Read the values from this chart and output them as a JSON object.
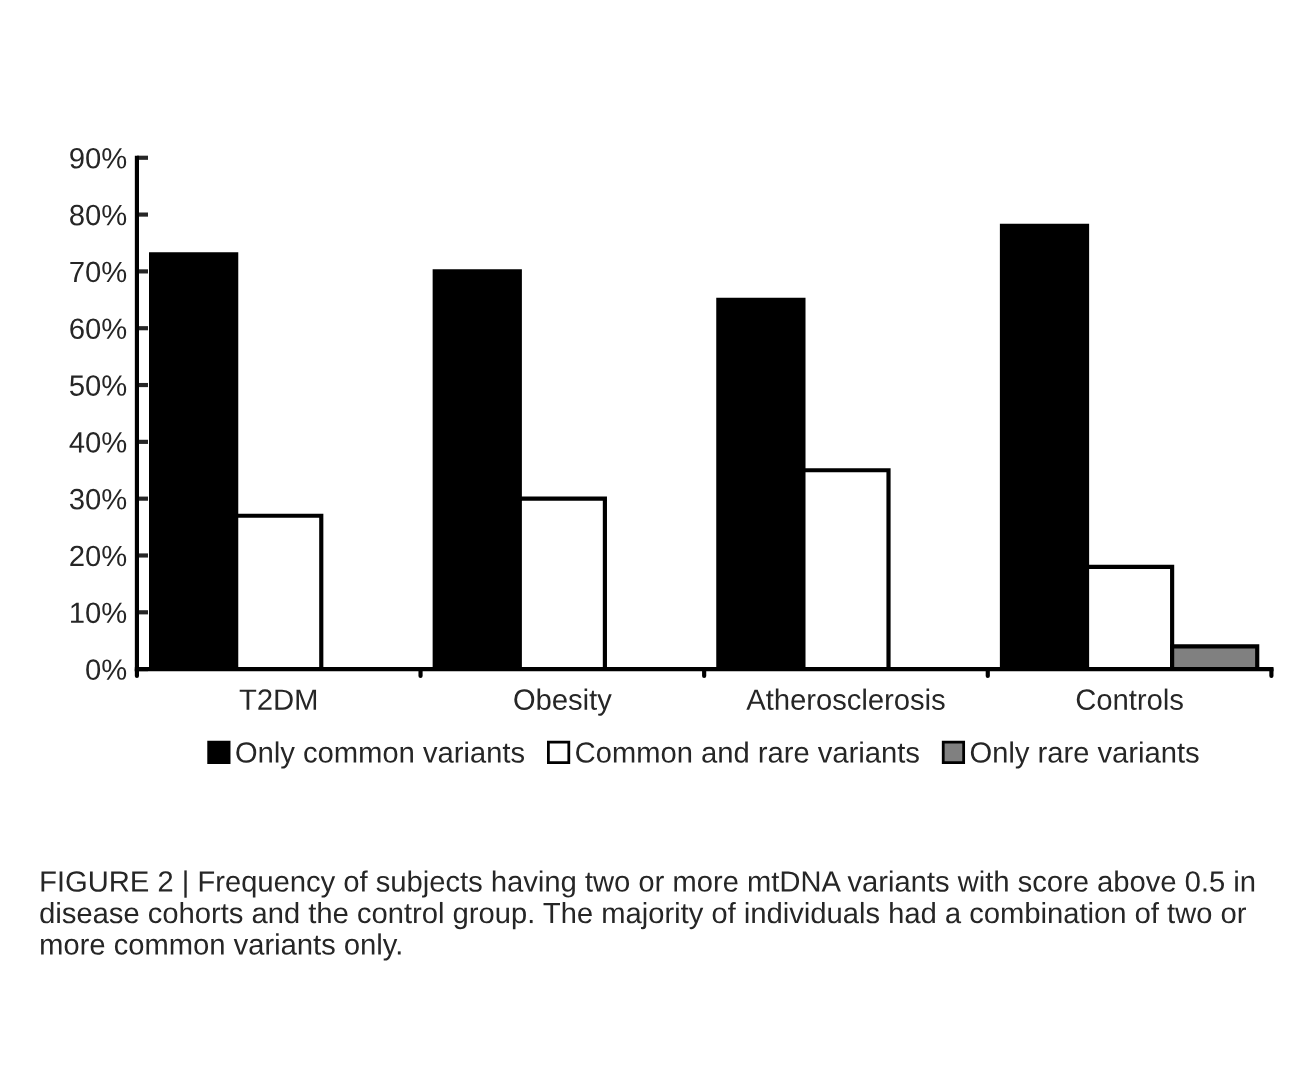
{
  "chart_data": {
    "type": "bar",
    "categories": [
      "T2DM",
      "Obesity",
      "Atherosclerosis",
      "Controls"
    ],
    "series": [
      {
        "name": "Only common variants",
        "color": "#000000",
        "values": [
          73,
          70,
          65,
          78
        ]
      },
      {
        "name": "Common and rare variants",
        "color": "#ffffff",
        "values": [
          27,
          30,
          35,
          18
        ]
      },
      {
        "name": "Only rare variants",
        "color": "#808080",
        "values": [
          null,
          null,
          null,
          4
        ]
      }
    ],
    "ylim": [
      0,
      90
    ],
    "yticks": [
      {
        "value": 0,
        "label": "0%"
      },
      {
        "value": 10,
        "label": "10%"
      },
      {
        "value": 20,
        "label": "20%"
      },
      {
        "value": 30,
        "label": "30%"
      },
      {
        "value": 40,
        "label": "40%"
      },
      {
        "value": 50,
        "label": "50%"
      },
      {
        "value": 60,
        "label": "60%"
      },
      {
        "value": 70,
        "label": "70%"
      },
      {
        "value": 80,
        "label": "80%"
      },
      {
        "value": 90,
        "label": "90%"
      }
    ],
    "grid": false,
    "legend": "bottom",
    "annotations": [
      "FIGURE 2 | Frequency of subjects having two or more mtDNA variants with score above 0.5 in disease cohorts and the control group. The majority of individuals had a combination of two or more common variants only."
    ]
  }
}
